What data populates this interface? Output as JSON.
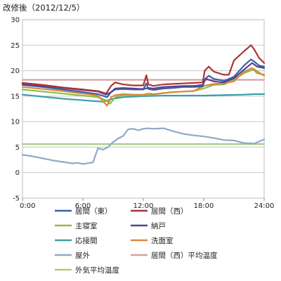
{
  "chart_data": {
    "type": "line",
    "title": "改修後（2012/12/5）",
    "xlabel": "",
    "ylabel": "",
    "x_ticks": [
      "0:00",
      "6:00",
      "12:00",
      "18:00",
      "24:00"
    ],
    "xlim_hours": [
      0,
      24
    ],
    "ylim": [
      -5,
      30
    ],
    "y_ticks": [
      -5,
      0,
      5,
      10,
      15,
      20,
      25,
      30
    ],
    "grid": "horizontal",
    "legend_position": "bottom",
    "series": [
      {
        "name": "居間（東）",
        "color": "#3a5fa8",
        "x": [
          0,
          2,
          4,
          6,
          7.5,
          8.4,
          8.8,
          9.2,
          10,
          11,
          12,
          12.3,
          12.5,
          13,
          14,
          15,
          16,
          17,
          17.9,
          18.1,
          18.5,
          19,
          20,
          21,
          22,
          22.7,
          23,
          23.5,
          24
        ],
        "y": [
          17.2,
          16.8,
          16.3,
          15.8,
          15.4,
          14.8,
          15.8,
          16.3,
          16.4,
          16.3,
          16.3,
          17.5,
          16.4,
          16.2,
          16.5,
          16.6,
          16.8,
          16.8,
          16.9,
          18.3,
          19.0,
          18.4,
          18.0,
          18.8,
          21.0,
          22.2,
          21.8,
          21.0,
          20.8
        ]
      },
      {
        "name": "居間（西）",
        "color": "#a93535",
        "x": [
          0,
          2,
          4,
          6,
          7.5,
          8.3,
          8.8,
          9.2,
          10,
          11,
          12,
          12.3,
          12.5,
          13,
          14,
          15,
          16,
          17,
          17.9,
          18.1,
          18.5,
          19,
          20,
          20.5,
          21,
          22,
          22.7,
          23,
          23.5,
          24
        ],
        "y": [
          17.6,
          17.2,
          16.7,
          16.3,
          16.0,
          15.5,
          17.0,
          17.7,
          17.3,
          17.1,
          17.1,
          19.1,
          17.3,
          17.0,
          17.3,
          17.4,
          17.5,
          17.6,
          17.7,
          20.0,
          20.8,
          19.8,
          19.2,
          19.2,
          22.0,
          23.8,
          25.0,
          24.2,
          22.5,
          21.5
        ]
      },
      {
        "name": "主寝室",
        "color": "#8dbd48",
        "x": [
          0,
          2,
          4,
          6,
          7.5,
          8.3,
          8.7,
          9.2,
          10,
          11,
          12,
          12.5,
          13,
          14,
          15,
          16,
          17,
          18,
          19,
          20,
          21,
          22,
          23,
          24
        ],
        "y": [
          16.3,
          15.9,
          15.5,
          15.1,
          14.8,
          14.2,
          13.5,
          14.8,
          15.2,
          15.2,
          15.2,
          15.4,
          15.3,
          15.6,
          15.8,
          15.9,
          16.0,
          16.5,
          17.2,
          17.3,
          18.2,
          19.5,
          20.3,
          19.0
        ]
      },
      {
        "name": "納戸",
        "color": "#5c3f8f",
        "x": [
          0,
          2,
          4,
          6,
          7.5,
          8.3,
          8.8,
          9.2,
          10,
          11,
          12,
          12.5,
          13,
          14,
          15,
          16,
          17,
          17.9,
          18.2,
          19,
          20,
          21,
          22,
          22.8,
          23.3,
          24
        ],
        "y": [
          17.4,
          17.0,
          16.6,
          16.2,
          15.9,
          15.3,
          15.8,
          16.5,
          16.6,
          16.5,
          16.4,
          16.6,
          16.5,
          16.8,
          16.9,
          17.0,
          17.0,
          17.2,
          18.4,
          17.9,
          17.7,
          18.5,
          20.2,
          21.5,
          20.8,
          20.5
        ]
      },
      {
        "name": "応接間",
        "color": "#3a9fa8",
        "x": [
          0,
          2,
          4,
          6,
          8,
          9,
          10,
          12,
          14,
          16,
          18,
          20,
          22,
          23,
          24
        ],
        "y": [
          15.3,
          14.9,
          14.5,
          14.2,
          13.9,
          14.5,
          14.8,
          15.0,
          15.1,
          15.1,
          15.1,
          15.2,
          15.3,
          15.4,
          15.4
        ]
      },
      {
        "name": "洗面室",
        "color": "#d98a3a",
        "x": [
          0,
          2,
          4,
          6,
          7.5,
          8.4,
          8.8,
          9.2,
          10,
          11,
          12,
          12.5,
          13,
          14,
          15,
          16,
          17,
          18,
          19,
          20,
          21,
          22,
          22.8,
          23.3,
          24
        ],
        "y": [
          16.8,
          16.4,
          16.0,
          15.5,
          15.1,
          13.1,
          14.8,
          15.2,
          15.4,
          15.3,
          15.3,
          15.5,
          15.4,
          15.6,
          15.8,
          15.9,
          16.0,
          17.0,
          17.4,
          17.5,
          17.9,
          19.8,
          20.5,
          19.5,
          19.2
        ]
      },
      {
        "name": "屋外",
        "color": "#8fa8c8",
        "x": [
          0,
          1,
          2,
          3,
          4,
          5,
          5.5,
          6,
          7,
          7.5,
          8,
          8.5,
          9,
          9.5,
          10,
          10.5,
          11,
          11.5,
          12,
          12.5,
          13,
          14,
          15,
          16,
          17,
          18,
          19,
          20,
          21,
          22,
          23,
          24
        ],
        "y": [
          3.5,
          3.2,
          2.8,
          2.4,
          2.1,
          1.8,
          1.9,
          1.7,
          2.0,
          4.8,
          4.5,
          5.0,
          6.0,
          6.7,
          7.2,
          8.5,
          8.6,
          8.3,
          8.6,
          8.7,
          8.6,
          8.7,
          8.1,
          7.6,
          7.3,
          7.1,
          6.8,
          6.4,
          6.3,
          5.8,
          5.7,
          6.5
        ]
      },
      {
        "name": "居間（西）平均温度",
        "color": "#d9a0a0",
        "x": [
          0,
          24
        ],
        "y": [
          18.2,
          18.2
        ]
      },
      {
        "name": "外気平均温度",
        "color": "#a7cc86",
        "x": [
          0,
          24
        ],
        "y": [
          5.6,
          5.6
        ]
      }
    ]
  }
}
